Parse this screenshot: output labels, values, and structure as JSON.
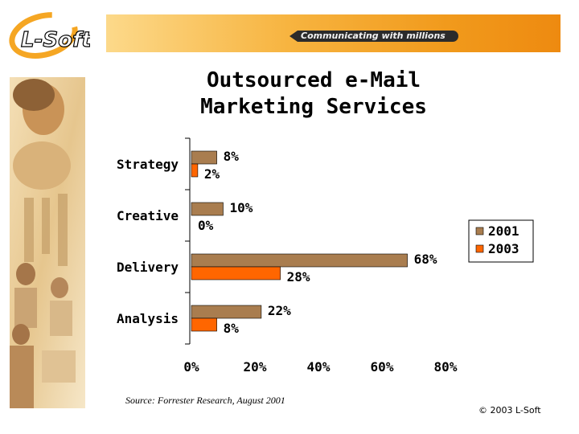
{
  "header": {
    "logo_text": "L-Soft",
    "tagline": "Communicating with millions"
  },
  "slide": {
    "title_line1": "Outsourced e-Mail",
    "title_line2": "Marketing Services",
    "source": "Source: Forrester Research, August 2001",
    "copyright": "© 2003 L-Soft"
  },
  "colors": {
    "accent": "#f7a21b",
    "series_2001": "#a97d4f",
    "series_2003": "#ff6600"
  },
  "chart_data": {
    "type": "bar",
    "orientation": "horizontal",
    "categories": [
      "Strategy",
      "Creative",
      "Delivery",
      "Analysis"
    ],
    "series": [
      {
        "name": "2001",
        "values": [
          8,
          10,
          68,
          22
        ],
        "labels": [
          "8%",
          "10%",
          "68%",
          "22%"
        ]
      },
      {
        "name": "2003",
        "values": [
          2,
          0,
          28,
          8
        ],
        "labels": [
          "2%",
          "0%",
          "28%",
          "8%"
        ]
      }
    ],
    "xlim": [
      0,
      80
    ],
    "xticks": [
      "0%",
      "20%",
      "40%",
      "60%",
      "80%"
    ],
    "xtick_values": [
      0,
      20,
      40,
      60,
      80
    ],
    "grid": false,
    "legend": "right"
  }
}
